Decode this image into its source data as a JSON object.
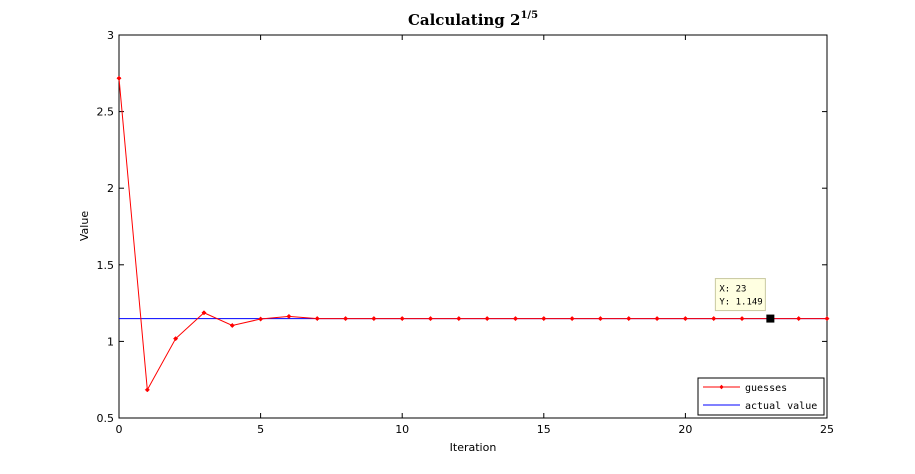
{
  "chart_data": {
    "type": "line",
    "title": "Calculating 2",
    "title_superscript": "1/5",
    "xlabel": "Iteration",
    "ylabel": "Value",
    "xlim": [
      0,
      25
    ],
    "ylim": [
      0.5,
      3
    ],
    "xticks": [
      "0",
      "5",
      "10",
      "15",
      "20",
      "25"
    ],
    "yticks": [
      "0.5",
      "1",
      "1.5",
      "2",
      "2.5",
      "3"
    ],
    "grid": false,
    "legend_position": "bottom-right",
    "series": [
      {
        "name": "guesses",
        "color": "#ff0000",
        "marker": "diamond",
        "x": [
          0,
          1,
          2,
          3,
          4,
          5,
          6,
          7,
          8,
          9,
          10,
          11,
          12,
          13,
          14,
          15,
          16,
          17,
          18,
          19,
          20,
          21,
          22,
          23,
          24,
          25
        ],
        "y": [
          2.718,
          0.684,
          1.018,
          1.187,
          1.104,
          1.146,
          1.163,
          1.149,
          1.149,
          1.149,
          1.149,
          1.149,
          1.149,
          1.149,
          1.149,
          1.149,
          1.149,
          1.149,
          1.149,
          1.149,
          1.149,
          1.149,
          1.149,
          1.149,
          1.149,
          1.149
        ]
      },
      {
        "name": "actual value",
        "color": "#0000ff",
        "x": [
          0,
          25
        ],
        "y": [
          1.149,
          1.149
        ]
      }
    ],
    "datatip": {
      "x_label": "X: 23",
      "y_label": "Y: 1.149",
      "x": 23,
      "y": 1.149
    }
  }
}
